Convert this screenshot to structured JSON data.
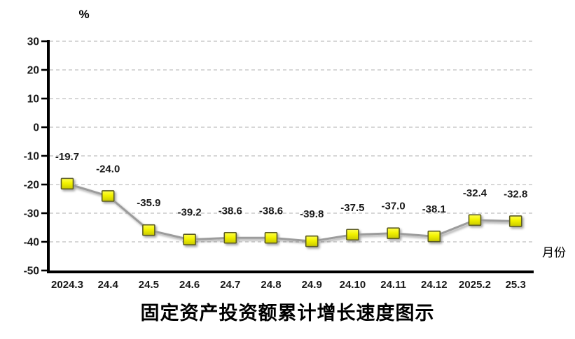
{
  "chart_data": {
    "type": "line",
    "title": "固定资产投资额累计增长速度图示",
    "ylabel": "%",
    "xlabel": "月份",
    "categories": [
      "2024.3",
      "24.4",
      "24.5",
      "24.6",
      "24.7",
      "24.8",
      "24.9",
      "24.10",
      "24.11",
      "24.12",
      "2025.2",
      "25.3"
    ],
    "series": [
      {
        "name": "固定资产投资额累计增长速度",
        "values": [
          -19.7,
          -24.0,
          -35.9,
          -39.2,
          -38.6,
          -38.6,
          -39.8,
          -37.5,
          -37.0,
          -38.1,
          -32.4,
          -32.8
        ]
      }
    ],
    "data_labels": [
      "-19.7",
      "-24.0",
      "-35.9",
      "-39.2",
      "-38.6",
      "-38.6",
      "-39.8",
      "-37.5",
      "-37.0",
      "-38.1",
      "-32.4",
      "-32.8"
    ],
    "ylim": [
      -50,
      30
    ],
    "ytick_step": 10,
    "yticks": [
      30,
      20,
      10,
      0,
      -10,
      -20,
      -30,
      -40,
      -50
    ],
    "grid": "horizontal-dashed",
    "legend_position": "none",
    "colors": {
      "line": "#9c9c9c",
      "marker_fill_top": "#ffff4d",
      "marker_fill_mid": "#f2f200",
      "marker_fill_bottom": "#c9c900",
      "marker_border": "#5c5c24",
      "gridline": "#bfbfbf",
      "axis": "#000000",
      "text": "#1a1a1a"
    }
  }
}
